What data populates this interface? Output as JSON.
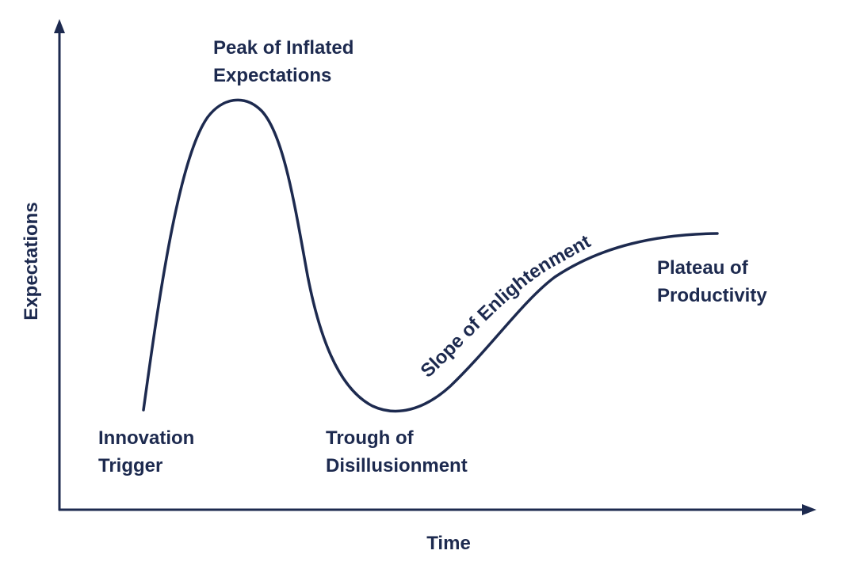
{
  "colors": {
    "ink": "#1d2a4f",
    "background": "#ffffff"
  },
  "axes": {
    "y_label": "Expectations",
    "x_label": "Time"
  },
  "phases": {
    "innovation_trigger": [
      "Innovation",
      "Trigger"
    ],
    "peak": [
      "Peak of Inflated",
      "Expectations"
    ],
    "trough": [
      "Trough of",
      "Disillusionment"
    ],
    "slope": "Slope of Enlightenment",
    "plateau": [
      "Plateau of",
      "Productivity"
    ]
  }
}
